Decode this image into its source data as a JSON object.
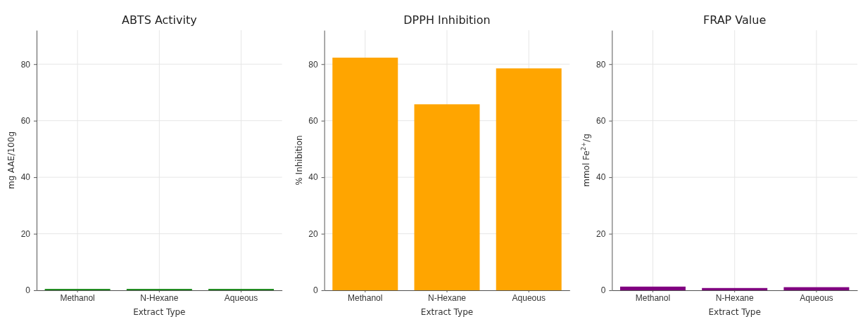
{
  "chart_data": [
    {
      "type": "bar",
      "title": "ABTS Activity",
      "xlabel": "Extract Type",
      "ylabel": "mg AAE/100g",
      "categories": [
        "Methanol",
        "N-Hexane",
        "Aqueous"
      ],
      "values": [
        0.5,
        0.5,
        0.5
      ],
      "color": "#228b22",
      "ylim": [
        0,
        92
      ],
      "yticks": [
        0,
        20,
        40,
        60,
        80
      ],
      "grid": true
    },
    {
      "type": "bar",
      "title": "DPPH Inhibition",
      "xlabel": "Extract Type",
      "ylabel": "% Inhibition",
      "categories": [
        "Methanol",
        "N-Hexane",
        "Aqueous"
      ],
      "values": [
        82.3,
        65.8,
        78.5
      ],
      "color": "#ffa500",
      "ylim": [
        0,
        92
      ],
      "yticks": [
        0,
        20,
        40,
        60,
        80
      ],
      "grid": true
    },
    {
      "type": "bar",
      "title": "FRAP Value",
      "xlabel": "Extract Type",
      "ylabel": "mmol Fe$^{2+}$/g",
      "categories": [
        "Methanol",
        "N-Hexane",
        "Aqueous"
      ],
      "values": [
        1.3,
        0.8,
        1.1
      ],
      "color": "#800080",
      "ylim": [
        0,
        92
      ],
      "yticks": [
        0,
        20,
        40,
        60,
        80
      ],
      "grid": true
    }
  ]
}
